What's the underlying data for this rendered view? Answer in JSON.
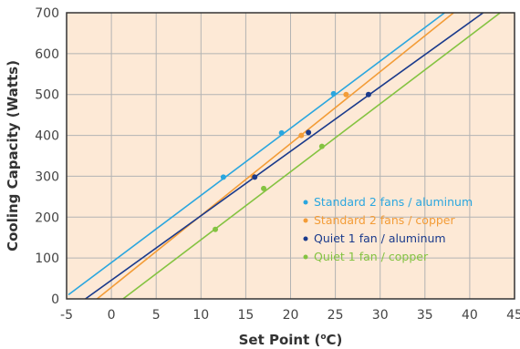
{
  "chart_data": {
    "type": "line",
    "xlabel": "Set Point (",
    "xlabel_deg": "o",
    "xlabel_unit": "C)",
    "ylabel": "Cooling Capacity (Watts)",
    "xlim": [
      -5,
      45
    ],
    "ylim": [
      0,
      700
    ],
    "xticks": [
      "-5",
      "0",
      "5",
      "10",
      "15",
      "20",
      "25",
      "30",
      "35",
      "40",
      "45"
    ],
    "yticks": [
      "0",
      "100",
      "200",
      "300",
      "400",
      "500",
      "600",
      "700"
    ],
    "grid": true,
    "legend_position": "lower-right",
    "colors": {
      "plot_background": "#fde9d6",
      "grid": "#b3b3b3"
    },
    "series": [
      {
        "name": "Standard 2 fans / aluminum",
        "color": "#2aa6df",
        "line": [
          [
            -4.8,
            10
          ],
          [
            37.2,
            700
          ]
        ],
        "points": [
          [
            12.5,
            298
          ],
          [
            19.0,
            406
          ],
          [
            24.8,
            502
          ]
        ]
      },
      {
        "name": "Standard 2 fans / copper",
        "color": "#f39c37",
        "line": [
          [
            -1.6,
            0
          ],
          [
            38.2,
            700
          ]
        ],
        "points": [
          [
            15.8,
            300
          ],
          [
            21.2,
            400
          ],
          [
            26.2,
            500
          ]
        ]
      },
      {
        "name": "Quiet 1 fan / aluminum",
        "color": "#1a3a8c",
        "line": [
          [
            -2.9,
            0
          ],
          [
            41.5,
            700
          ]
        ],
        "points": [
          [
            16.0,
            298
          ],
          [
            22.0,
            407
          ],
          [
            28.7,
            500
          ]
        ]
      },
      {
        "name": "Quiet 1 fan / copper",
        "color": "#84c341",
        "line": [
          [
            1.3,
            0
          ],
          [
            43.4,
            700
          ]
        ],
        "points": [
          [
            11.6,
            170
          ],
          [
            17.0,
            270
          ],
          [
            23.5,
            373
          ]
        ]
      }
    ]
  }
}
